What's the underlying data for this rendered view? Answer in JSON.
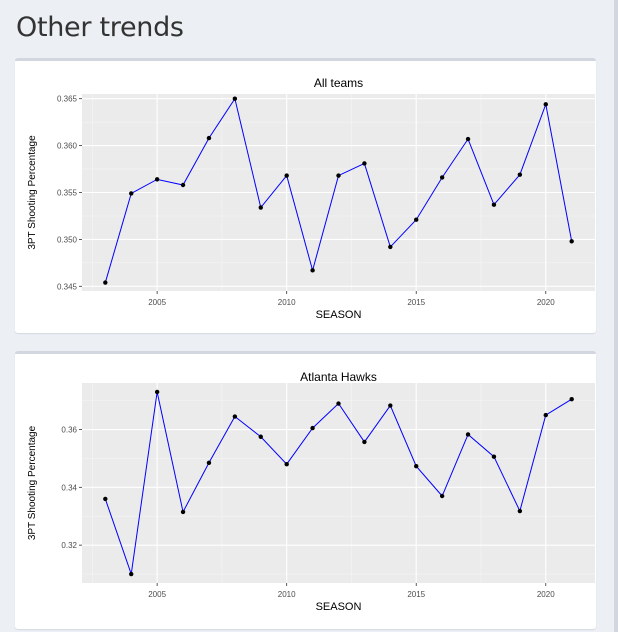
{
  "page": {
    "title": "Other trends"
  },
  "chart_data": [
    {
      "type": "line",
      "title": "All teams",
      "xlabel": "SEASON",
      "ylabel": "3PT Shooting Percentage",
      "x": [
        2003,
        2004,
        2005,
        2006,
        2007,
        2008,
        2009,
        2010,
        2011,
        2012,
        2013,
        2014,
        2015,
        2016,
        2017,
        2018,
        2019,
        2020,
        2021
      ],
      "series": [
        {
          "values": [
            0.3454,
            0.3549,
            0.3564,
            0.3558,
            0.3608,
            0.365,
            0.3534,
            0.3568,
            0.3467,
            0.3568,
            0.3581,
            0.3492,
            0.3521,
            0.3566,
            0.3607,
            0.3537,
            0.3569,
            0.3644,
            0.3498
          ],
          "color": "#0000ff"
        }
      ],
      "xlim": [
        2002.1,
        2021.9
      ],
      "ylim": [
        0.3445,
        0.3655
      ],
      "xticks": [
        2005,
        2010,
        2015,
        2020
      ],
      "xtick_labels": [
        "2005",
        "2010",
        "2015",
        "2020"
      ],
      "yticks": [
        0.345,
        0.35,
        0.355,
        0.36,
        0.365
      ],
      "ytick_labels": [
        "0.345",
        "0.350",
        "0.355",
        "0.360",
        "0.365"
      ],
      "grid": true,
      "panel_color": "#ebebeb",
      "point_color": "#000000"
    },
    {
      "type": "line",
      "title": "Atlanta Hawks",
      "xlabel": "SEASON",
      "ylabel": "3PT Shooting Percentage",
      "x": [
        2003,
        2004,
        2005,
        2006,
        2007,
        2008,
        2009,
        2010,
        2011,
        2012,
        2013,
        2014,
        2015,
        2016,
        2017,
        2018,
        2019,
        2020,
        2021
      ],
      "series": [
        {
          "values": [
            0.336,
            0.31,
            0.373,
            0.3315,
            0.3485,
            0.3645,
            0.3575,
            0.348,
            0.3605,
            0.369,
            0.3557,
            0.3683,
            0.3473,
            0.337,
            0.3583,
            0.3506,
            0.3318,
            0.365,
            0.3705
          ],
          "color": "#0000ff"
        }
      ],
      "xlim": [
        2002.1,
        2021.9
      ],
      "ylim": [
        0.3069,
        0.3761
      ],
      "xticks": [
        2005,
        2010,
        2015,
        2020
      ],
      "xtick_labels": [
        "2005",
        "2010",
        "2015",
        "2020"
      ],
      "yticks": [
        0.32,
        0.34,
        0.36
      ],
      "ytick_labels": [
        "0.32",
        "0.34",
        "0.36"
      ],
      "grid": true,
      "panel_color": "#ebebeb",
      "point_color": "#000000"
    }
  ]
}
